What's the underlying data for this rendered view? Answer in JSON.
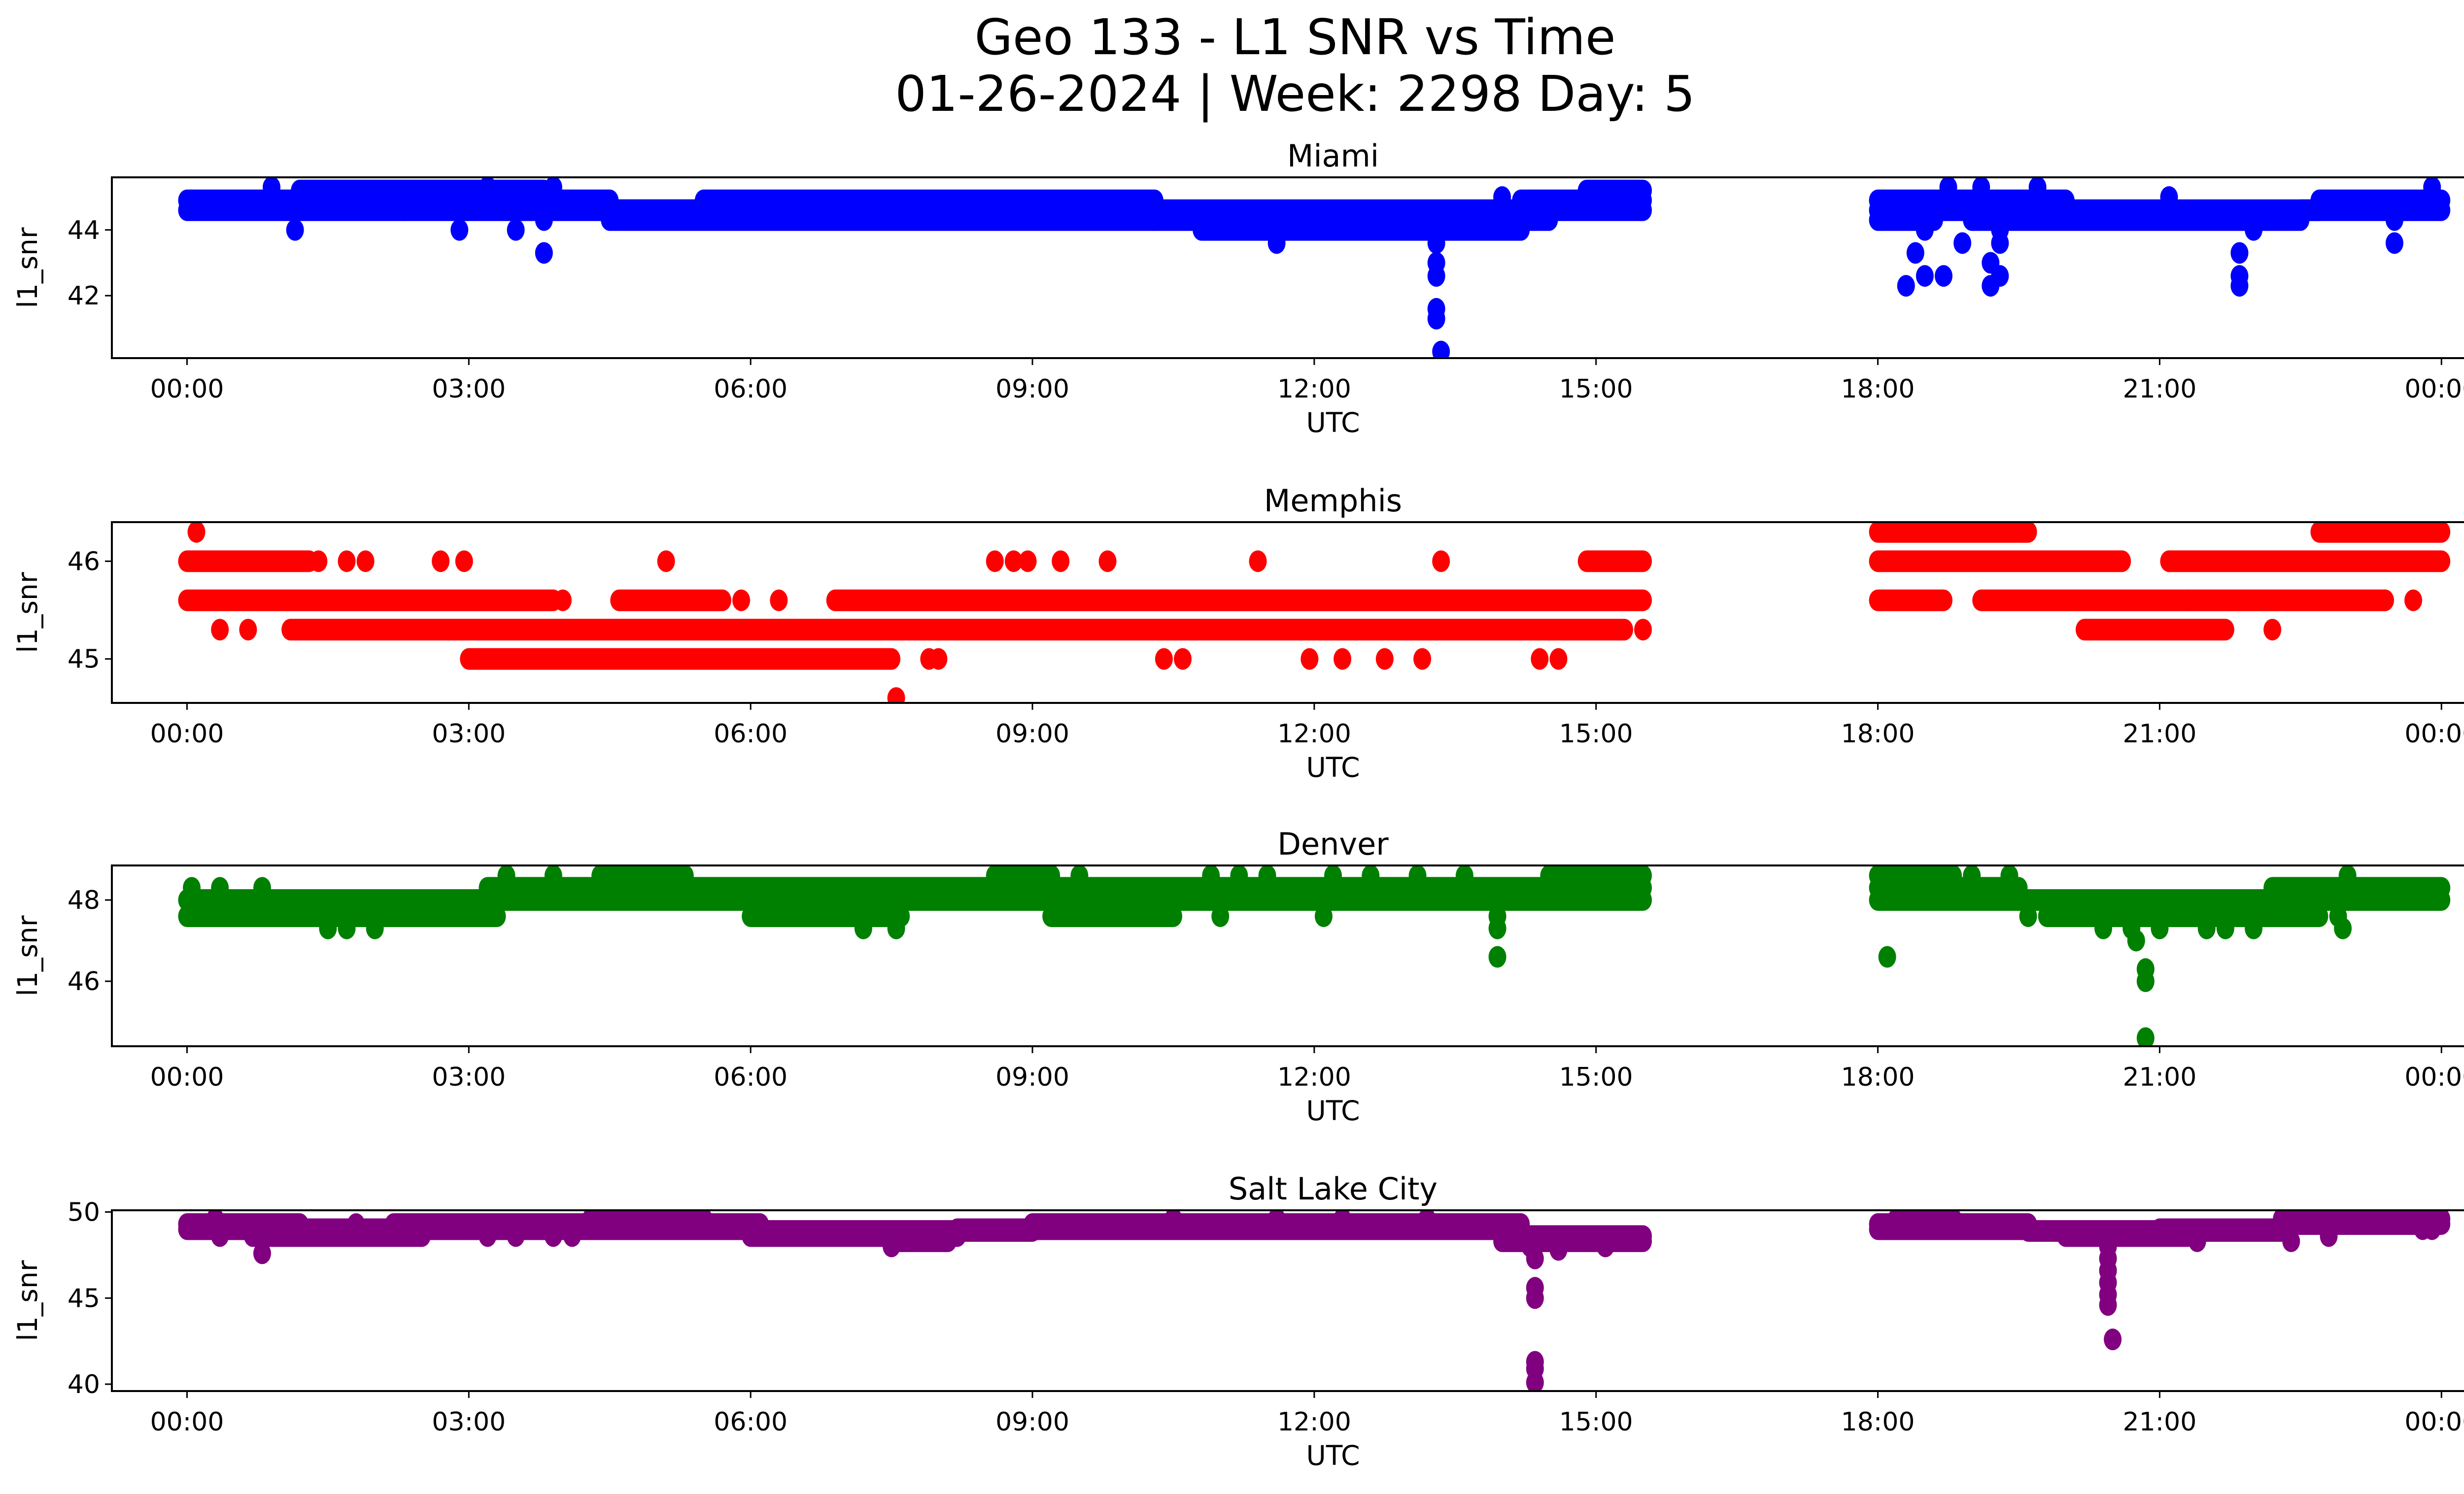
{
  "chart_data": {
    "type": "scatter",
    "title": "Geo 133 - L1 SNR vs Time",
    "subtitle": "01-26-2024 | Week: 2298 Day: 5",
    "xlabel": "UTC",
    "ylabel": "l1_snr",
    "x_unit": "hours UTC",
    "xlim": [
      -0.8,
      25.2
    ],
    "x_ticks": [
      0,
      3,
      6,
      9,
      12,
      15,
      18,
      21,
      24
    ],
    "x_tick_labels": [
      "00:00",
      "03:00",
      "06:00",
      "09:00",
      "12:00",
      "15:00",
      "18:00",
      "21:00",
      "00:00"
    ],
    "data_gap_hours": [
      15.5,
      18.0
    ],
    "panels": [
      {
        "name": "Miami",
        "color": "#0000ff",
        "ylim": [
          40.1,
          45.6
        ],
        "y_ticks": [
          42,
          44
        ],
        "runs": [
          {
            "start": 0.0,
            "end": 2.3,
            "value": 44.9
          },
          {
            "start": 0.0,
            "end": 2.3,
            "value": 44.6
          },
          {
            "start": 1.2,
            "end": 3.8,
            "value": 45.2
          },
          {
            "start": 2.3,
            "end": 4.5,
            "value": 44.9
          },
          {
            "start": 2.3,
            "end": 5.5,
            "value": 44.6
          },
          {
            "start": 4.5,
            "end": 10.3,
            "value": 44.6
          },
          {
            "start": 5.5,
            "end": 10.3,
            "value": 44.9
          },
          {
            "start": 4.5,
            "end": 10.3,
            "value": 44.3
          },
          {
            "start": 10.3,
            "end": 14.5,
            "value": 44.3
          },
          {
            "start": 10.3,
            "end": 14.5,
            "value": 44.6
          },
          {
            "start": 10.8,
            "end": 14.2,
            "value": 44.0
          },
          {
            "start": 14.2,
            "end": 15.5,
            "value": 44.9
          },
          {
            "start": 14.5,
            "end": 15.5,
            "value": 44.6
          },
          {
            "start": 14.9,
            "end": 15.5,
            "value": 45.2
          },
          {
            "start": 18.0,
            "end": 20.0,
            "value": 44.9
          },
          {
            "start": 18.0,
            "end": 20.0,
            "value": 44.6
          },
          {
            "start": 18.0,
            "end": 18.6,
            "value": 44.3
          },
          {
            "start": 19.0,
            "end": 22.7,
            "value": 44.6
          },
          {
            "start": 19.0,
            "end": 22.5,
            "value": 44.3
          },
          {
            "start": 22.7,
            "end": 24.0,
            "value": 44.9
          },
          {
            "start": 22.5,
            "end": 24.0,
            "value": 44.6
          }
        ],
        "points": [
          {
            "x": 0.9,
            "y": 45.3
          },
          {
            "x": 1.15,
            "y": 44.0
          },
          {
            "x": 2.9,
            "y": 44.0
          },
          {
            "x": 3.2,
            "y": 45.3
          },
          {
            "x": 3.5,
            "y": 44.0
          },
          {
            "x": 3.8,
            "y": 43.3
          },
          {
            "x": 3.8,
            "y": 44.3
          },
          {
            "x": 3.9,
            "y": 45.3
          },
          {
            "x": 11.6,
            "y": 43.6
          },
          {
            "x": 13.3,
            "y": 43.6
          },
          {
            "x": 13.3,
            "y": 43.0
          },
          {
            "x": 13.3,
            "y": 42.6
          },
          {
            "x": 13.3,
            "y": 41.6
          },
          {
            "x": 13.3,
            "y": 41.3
          },
          {
            "x": 13.35,
            "y": 40.3
          },
          {
            "x": 14.0,
            "y": 45.0
          },
          {
            "x": 18.3,
            "y": 42.3
          },
          {
            "x": 18.4,
            "y": 43.3
          },
          {
            "x": 18.5,
            "y": 42.6
          },
          {
            "x": 18.5,
            "y": 44.0
          },
          {
            "x": 18.7,
            "y": 42.6
          },
          {
            "x": 18.75,
            "y": 45.3
          },
          {
            "x": 18.9,
            "y": 43.6
          },
          {
            "x": 19.1,
            "y": 45.3
          },
          {
            "x": 19.2,
            "y": 43.0
          },
          {
            "x": 19.2,
            "y": 42.3
          },
          {
            "x": 19.3,
            "y": 42.6
          },
          {
            "x": 19.3,
            "y": 43.6
          },
          {
            "x": 19.3,
            "y": 44.0
          },
          {
            "x": 19.7,
            "y": 45.3
          },
          {
            "x": 21.1,
            "y": 45.0
          },
          {
            "x": 21.85,
            "y": 43.3
          },
          {
            "x": 21.85,
            "y": 42.6
          },
          {
            "x": 21.85,
            "y": 42.3
          },
          {
            "x": 22.0,
            "y": 44.0
          },
          {
            "x": 23.5,
            "y": 43.6
          },
          {
            "x": 23.5,
            "y": 44.3
          },
          {
            "x": 23.9,
            "y": 45.3
          }
        ]
      },
      {
        "name": "Memphis",
        "color": "#ff0000",
        "ylim": [
          44.55,
          46.4
        ],
        "y_ticks": [
          45,
          46
        ],
        "runs": [
          {
            "start": 0.0,
            "end": 1.3,
            "value": 46.0
          },
          {
            "start": 0.0,
            "end": 3.9,
            "value": 45.6
          },
          {
            "start": 1.1,
            "end": 15.3,
            "value": 45.3
          },
          {
            "start": 3.0,
            "end": 7.5,
            "value": 45.0
          },
          {
            "start": 4.6,
            "end": 5.7,
            "value": 45.6
          },
          {
            "start": 6.9,
            "end": 15.5,
            "value": 45.6
          },
          {
            "start": 14.9,
            "end": 15.5,
            "value": 46.0
          },
          {
            "start": 18.0,
            "end": 19.6,
            "value": 46.3
          },
          {
            "start": 18.0,
            "end": 20.6,
            "value": 46.0
          },
          {
            "start": 18.0,
            "end": 18.7,
            "value": 45.6
          },
          {
            "start": 19.1,
            "end": 23.4,
            "value": 45.6
          },
          {
            "start": 21.1,
            "end": 24.0,
            "value": 46.0
          },
          {
            "start": 20.2,
            "end": 21.7,
            "value": 45.3
          },
          {
            "start": 22.7,
            "end": 24.0,
            "value": 46.3
          }
        ],
        "points": [
          {
            "x": 0.1,
            "y": 46.3
          },
          {
            "x": 1.4,
            "y": 46.0
          },
          {
            "x": 1.7,
            "y": 46.0
          },
          {
            "x": 1.9,
            "y": 46.0
          },
          {
            "x": 2.7,
            "y": 46.0
          },
          {
            "x": 2.95,
            "y": 46.0
          },
          {
            "x": 0.35,
            "y": 45.3
          },
          {
            "x": 0.65,
            "y": 45.3
          },
          {
            "x": 4.0,
            "y": 45.6
          },
          {
            "x": 5.1,
            "y": 46.0
          },
          {
            "x": 5.9,
            "y": 45.6
          },
          {
            "x": 6.3,
            "y": 45.6
          },
          {
            "x": 7.55,
            "y": 44.6
          },
          {
            "x": 7.9,
            "y": 45.0
          },
          {
            "x": 8.0,
            "y": 45.0
          },
          {
            "x": 8.6,
            "y": 46.0
          },
          {
            "x": 8.8,
            "y": 46.0
          },
          {
            "x": 8.95,
            "y": 46.0
          },
          {
            "x": 9.3,
            "y": 46.0
          },
          {
            "x": 9.8,
            "y": 46.0
          },
          {
            "x": 10.4,
            "y": 45.0
          },
          {
            "x": 10.6,
            "y": 45.0
          },
          {
            "x": 11.4,
            "y": 46.0
          },
          {
            "x": 11.95,
            "y": 45.0
          },
          {
            "x": 12.3,
            "y": 45.0
          },
          {
            "x": 12.75,
            "y": 45.0
          },
          {
            "x": 13.15,
            "y": 45.0
          },
          {
            "x": 13.35,
            "y": 46.0
          },
          {
            "x": 14.4,
            "y": 45.0
          },
          {
            "x": 14.6,
            "y": 45.0
          },
          {
            "x": 15.3,
            "y": 45.3
          },
          {
            "x": 15.5,
            "y": 45.3
          },
          {
            "x": 21.1,
            "y": 46.0
          },
          {
            "x": 21.3,
            "y": 45.6
          },
          {
            "x": 22.2,
            "y": 45.3
          },
          {
            "x": 23.4,
            "y": 45.6
          },
          {
            "x": 23.7,
            "y": 45.6
          }
        ]
      },
      {
        "name": "Denver",
        "color": "#008000",
        "ylim": [
          44.4,
          48.85
        ],
        "y_ticks": [
          46,
          48
        ],
        "runs": [
          {
            "start": 0.0,
            "end": 3.2,
            "value": 48.0
          },
          {
            "start": 0.0,
            "end": 3.3,
            "value": 47.6
          },
          {
            "start": 3.2,
            "end": 15.5,
            "value": 48.3
          },
          {
            "start": 3.2,
            "end": 15.5,
            "value": 48.0
          },
          {
            "start": 4.4,
            "end": 5.3,
            "value": 48.6
          },
          {
            "start": 6.0,
            "end": 7.6,
            "value": 47.6
          },
          {
            "start": 8.6,
            "end": 9.2,
            "value": 48.6
          },
          {
            "start": 9.2,
            "end": 10.5,
            "value": 47.6
          },
          {
            "start": 14.5,
            "end": 15.5,
            "value": 48.6
          },
          {
            "start": 18.0,
            "end": 18.8,
            "value": 48.6
          },
          {
            "start": 18.0,
            "end": 19.5,
            "value": 48.3
          },
          {
            "start": 18.0,
            "end": 24.0,
            "value": 48.0
          },
          {
            "start": 19.8,
            "end": 22.7,
            "value": 47.6
          },
          {
            "start": 22.2,
            "end": 24.0,
            "value": 48.3
          }
        ],
        "points": [
          {
            "x": 0.05,
            "y": 48.3
          },
          {
            "x": 0.35,
            "y": 48.3
          },
          {
            "x": 0.8,
            "y": 48.3
          },
          {
            "x": 1.5,
            "y": 47.3
          },
          {
            "x": 1.7,
            "y": 47.3
          },
          {
            "x": 2.0,
            "y": 47.3
          },
          {
            "x": 3.4,
            "y": 48.6
          },
          {
            "x": 3.9,
            "y": 48.6
          },
          {
            "x": 7.2,
            "y": 47.3
          },
          {
            "x": 7.55,
            "y": 47.3
          },
          {
            "x": 7.55,
            "y": 47.6
          },
          {
            "x": 9.5,
            "y": 48.6
          },
          {
            "x": 10.9,
            "y": 48.6
          },
          {
            "x": 11.0,
            "y": 47.6
          },
          {
            "x": 11.2,
            "y": 48.6
          },
          {
            "x": 11.5,
            "y": 48.6
          },
          {
            "x": 12.1,
            "y": 47.6
          },
          {
            "x": 12.2,
            "y": 48.6
          },
          {
            "x": 12.6,
            "y": 48.6
          },
          {
            "x": 13.1,
            "y": 48.6
          },
          {
            "x": 13.6,
            "y": 48.6
          },
          {
            "x": 13.95,
            "y": 47.6
          },
          {
            "x": 13.95,
            "y": 47.3
          },
          {
            "x": 13.95,
            "y": 46.6
          },
          {
            "x": 18.1,
            "y": 46.6
          },
          {
            "x": 19.0,
            "y": 48.6
          },
          {
            "x": 19.4,
            "y": 48.6
          },
          {
            "x": 19.6,
            "y": 47.6
          },
          {
            "x": 20.4,
            "y": 47.3
          },
          {
            "x": 20.7,
            "y": 47.3
          },
          {
            "x": 20.75,
            "y": 47.0
          },
          {
            "x": 20.85,
            "y": 46.3
          },
          {
            "x": 20.85,
            "y": 46.0
          },
          {
            "x": 20.85,
            "y": 44.6
          },
          {
            "x": 21.0,
            "y": 47.3
          },
          {
            "x": 21.5,
            "y": 47.3
          },
          {
            "x": 21.7,
            "y": 47.3
          },
          {
            "x": 22.0,
            "y": 47.3
          },
          {
            "x": 22.9,
            "y": 47.6
          },
          {
            "x": 22.95,
            "y": 47.3
          },
          {
            "x": 23.0,
            "y": 48.6
          }
        ]
      },
      {
        "name": "Salt Lake City",
        "color": "#800080",
        "ylim": [
          39.6,
          50.1
        ],
        "y_ticks": [
          40,
          45,
          50
        ],
        "runs": [
          {
            "start": 0.0,
            "end": 1.2,
            "value": 49.3
          },
          {
            "start": 0.0,
            "end": 1.2,
            "value": 49.0
          },
          {
            "start": 0.9,
            "end": 2.5,
            "value": 48.6
          },
          {
            "start": 1.2,
            "end": 6.1,
            "value": 49.0
          },
          {
            "start": 2.2,
            "end": 6.1,
            "value": 49.3
          },
          {
            "start": 4.3,
            "end": 5.5,
            "value": 49.6
          },
          {
            "start": 6.0,
            "end": 8.2,
            "value": 48.6
          },
          {
            "start": 6.0,
            "end": 9.0,
            "value": 48.9
          },
          {
            "start": 7.5,
            "end": 8.1,
            "value": 48.3
          },
          {
            "start": 8.2,
            "end": 14.2,
            "value": 49.0
          },
          {
            "start": 9.0,
            "end": 14.2,
            "value": 49.3
          },
          {
            "start": 14.0,
            "end": 15.5,
            "value": 48.6
          },
          {
            "start": 14.0,
            "end": 15.5,
            "value": 48.3
          },
          {
            "start": 18.0,
            "end": 19.6,
            "value": 49.3
          },
          {
            "start": 18.0,
            "end": 19.6,
            "value": 49.0
          },
          {
            "start": 18.2,
            "end": 18.8,
            "value": 49.6
          },
          {
            "start": 19.6,
            "end": 22.3,
            "value": 48.9
          },
          {
            "start": 20.0,
            "end": 21.3,
            "value": 48.6
          },
          {
            "start": 21.0,
            "end": 22.3,
            "value": 49.0
          },
          {
            "start": 22.3,
            "end": 24.0,
            "value": 49.3
          },
          {
            "start": 22.3,
            "end": 24.0,
            "value": 49.6
          }
        ],
        "points": [
          {
            "x": 0.3,
            "y": 49.6
          },
          {
            "x": 0.35,
            "y": 48.6
          },
          {
            "x": 0.7,
            "y": 48.6
          },
          {
            "x": 0.8,
            "y": 48.3
          },
          {
            "x": 0.8,
            "y": 47.6
          },
          {
            "x": 1.8,
            "y": 49.3
          },
          {
            "x": 3.2,
            "y": 48.6
          },
          {
            "x": 3.5,
            "y": 48.6
          },
          {
            "x": 3.9,
            "y": 48.6
          },
          {
            "x": 4.1,
            "y": 48.6
          },
          {
            "x": 7.5,
            "y": 48.0
          },
          {
            "x": 10.5,
            "y": 49.6
          },
          {
            "x": 11.6,
            "y": 49.6
          },
          {
            "x": 12.3,
            "y": 49.6
          },
          {
            "x": 13.2,
            "y": 49.6
          },
          {
            "x": 14.3,
            "y": 48.0
          },
          {
            "x": 14.35,
            "y": 47.3
          },
          {
            "x": 14.35,
            "y": 45.6
          },
          {
            "x": 14.35,
            "y": 45.0
          },
          {
            "x": 14.35,
            "y": 41.3
          },
          {
            "x": 14.35,
            "y": 40.9
          },
          {
            "x": 14.35,
            "y": 40.1
          },
          {
            "x": 14.6,
            "y": 47.8
          },
          {
            "x": 15.1,
            "y": 48.0
          },
          {
            "x": 20.45,
            "y": 48.0
          },
          {
            "x": 20.45,
            "y": 47.3
          },
          {
            "x": 20.45,
            "y": 46.6
          },
          {
            "x": 20.45,
            "y": 45.9
          },
          {
            "x": 20.45,
            "y": 45.2
          },
          {
            "x": 20.45,
            "y": 44.6
          },
          {
            "x": 20.5,
            "y": 42.6
          },
          {
            "x": 21.4,
            "y": 48.3
          },
          {
            "x": 22.4,
            "y": 48.3
          },
          {
            "x": 22.8,
            "y": 48.6
          },
          {
            "x": 23.8,
            "y": 49.0
          },
          {
            "x": 23.9,
            "y": 49.0
          }
        ]
      }
    ]
  }
}
